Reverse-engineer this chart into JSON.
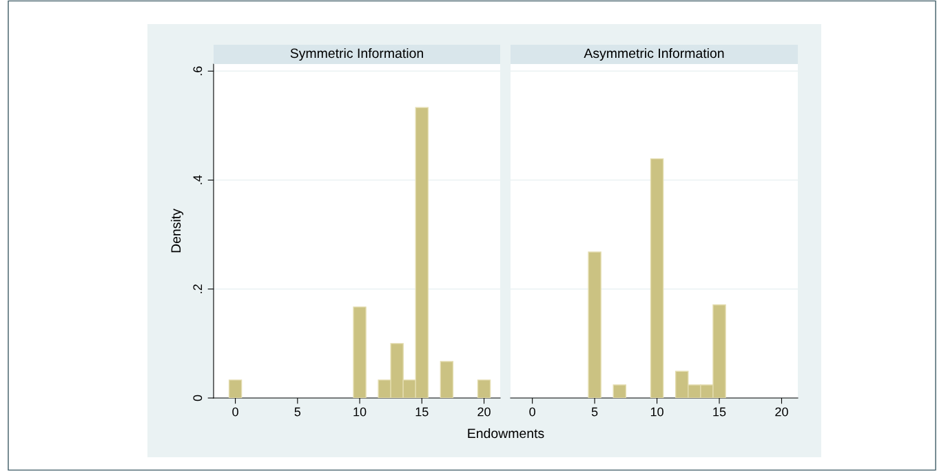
{
  "chart_data": [
    {
      "type": "histogram",
      "title": "Symmetric Information",
      "xlabel": "Endowments",
      "ylabel": "Density",
      "bins": [
        -0.5,
        0.5,
        1.5,
        2.5,
        3.5,
        4.5,
        5.5,
        6.5,
        7.5,
        8.5,
        9.5,
        10.5,
        11.5,
        12.5,
        13.5,
        14.5,
        15.5,
        16.5,
        17.5,
        18.5,
        19.5,
        20.5
      ],
      "values": [
        0.033,
        0,
        0,
        0,
        0,
        0,
        0,
        0,
        0,
        0,
        0.167,
        0,
        0.033,
        0.1,
        0.033,
        0.533,
        0,
        0.067,
        0,
        0,
        0.033
      ],
      "color": "#cbc282",
      "xlim": [
        -1.75,
        21.3
      ],
      "ylim": [
        0,
        0.613
      ],
      "xticks": [
        0,
        5,
        10,
        15,
        20
      ],
      "yticks": [
        {
          "value": 0,
          "label": "0"
        },
        {
          "value": 0.2,
          "label": ".2"
        },
        {
          "value": 0.4,
          "label": ".4"
        },
        {
          "value": 0.6,
          "label": ".6"
        }
      ],
      "grid": "y"
    },
    {
      "type": "histogram",
      "title": "Asymmetric Information",
      "bins": [
        -0.5,
        0.5,
        1.5,
        2.5,
        3.5,
        4.5,
        5.5,
        6.5,
        7.5,
        8.5,
        9.5,
        10.5,
        11.5,
        12.5,
        13.5,
        14.5,
        15.5,
        16.5,
        17.5,
        18.5,
        19.5,
        20.5
      ],
      "values": [
        0,
        0,
        0,
        0,
        0,
        0.268,
        0,
        0.024,
        0,
        0,
        0.439,
        0,
        0.049,
        0.024,
        0.024,
        0.171,
        0,
        0,
        0,
        0,
        0
      ],
      "color": "#cbc282",
      "xlim": [
        -1.75,
        21.3
      ],
      "ylim": [
        0,
        0.613
      ],
      "xticks": [
        0,
        5,
        10,
        15,
        20
      ],
      "grid": "y",
      "tick_labels": "x"
    }
  ]
}
